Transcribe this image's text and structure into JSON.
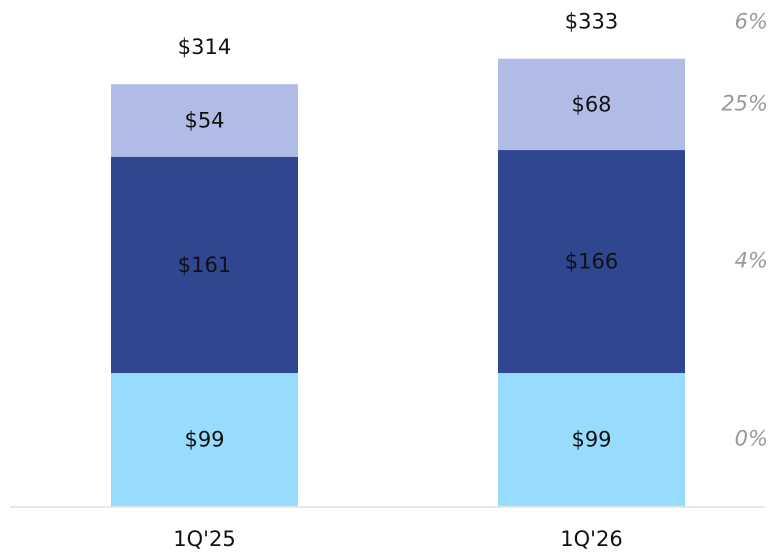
{
  "chart_data": {
    "type": "stacked-bar",
    "categories": [
      "1Q'25",
      "1Q'26"
    ],
    "series": [
      {
        "color": "#97dbfd",
        "values": [
          99,
          99
        ],
        "value_labels": [
          "$99",
          "$99"
        ],
        "growth": 0,
        "growth_label": "0%"
      },
      {
        "color": "#2f4690",
        "values": [
          161,
          166
        ],
        "value_labels": [
          "$161",
          "$166"
        ],
        "growth": 4,
        "growth_label": "4%"
      },
      {
        "color": "#b0bce6",
        "values": [
          54,
          68
        ],
        "value_labels": [
          "$54",
          "$68"
        ],
        "growth": 25,
        "growth_label": "25%"
      }
    ],
    "totals": [
      314,
      333
    ],
    "total_labels": [
      "$314",
      "$333"
    ],
    "total_growth": 6,
    "total_growth_label": "6%",
    "ylim": [
      0,
      370
    ]
  }
}
